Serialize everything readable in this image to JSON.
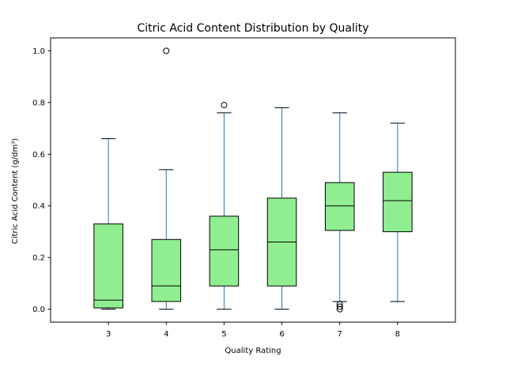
{
  "chart_data": {
    "type": "boxplot",
    "title": "Citric Acid Content Distribution by Quality",
    "xlabel": "Quality Rating",
    "ylabel": "Citric Acid Content (g/dm³)",
    "ylim": [
      -0.05,
      1.05
    ],
    "yticks": [
      0.0,
      0.2,
      0.4,
      0.6,
      0.8,
      1.0
    ],
    "ytick_labels": [
      "0.0",
      "0.2",
      "0.4",
      "0.6",
      "0.8",
      "1.0"
    ],
    "grid": false,
    "categories": [
      "3",
      "4",
      "5",
      "6",
      "7",
      "8"
    ],
    "boxes": [
      {
        "label": "3",
        "whisker_low": 0.0,
        "q1": 0.005,
        "median": 0.035,
        "q3": 0.33,
        "whisker_high": 0.66,
        "outliers": []
      },
      {
        "label": "4",
        "whisker_low": 0.0,
        "q1": 0.03,
        "median": 0.09,
        "q3": 0.27,
        "whisker_high": 0.54,
        "outliers": [
          1.0
        ]
      },
      {
        "label": "5",
        "whisker_low": 0.0,
        "q1": 0.09,
        "median": 0.23,
        "q3": 0.36,
        "whisker_high": 0.76,
        "outliers": [
          0.79
        ]
      },
      {
        "label": "6",
        "whisker_low": 0.0,
        "q1": 0.09,
        "median": 0.26,
        "q3": 0.43,
        "whisker_high": 0.78,
        "outliers": []
      },
      {
        "label": "7",
        "whisker_low": 0.03,
        "q1": 0.305,
        "median": 0.4,
        "q3": 0.49,
        "whisker_high": 0.76,
        "outliers": [
          0.0,
          0.01,
          0.02
        ]
      },
      {
        "label": "8",
        "whisker_low": 0.03,
        "q1": 0.3,
        "median": 0.42,
        "q3": 0.53,
        "whisker_high": 0.72,
        "outliers": []
      }
    ],
    "colors": {
      "box_fill": "#90ee90",
      "box_edge": "#000000",
      "whisker": "#1f77b4",
      "median": "#000000",
      "outlier": "#000000"
    }
  }
}
